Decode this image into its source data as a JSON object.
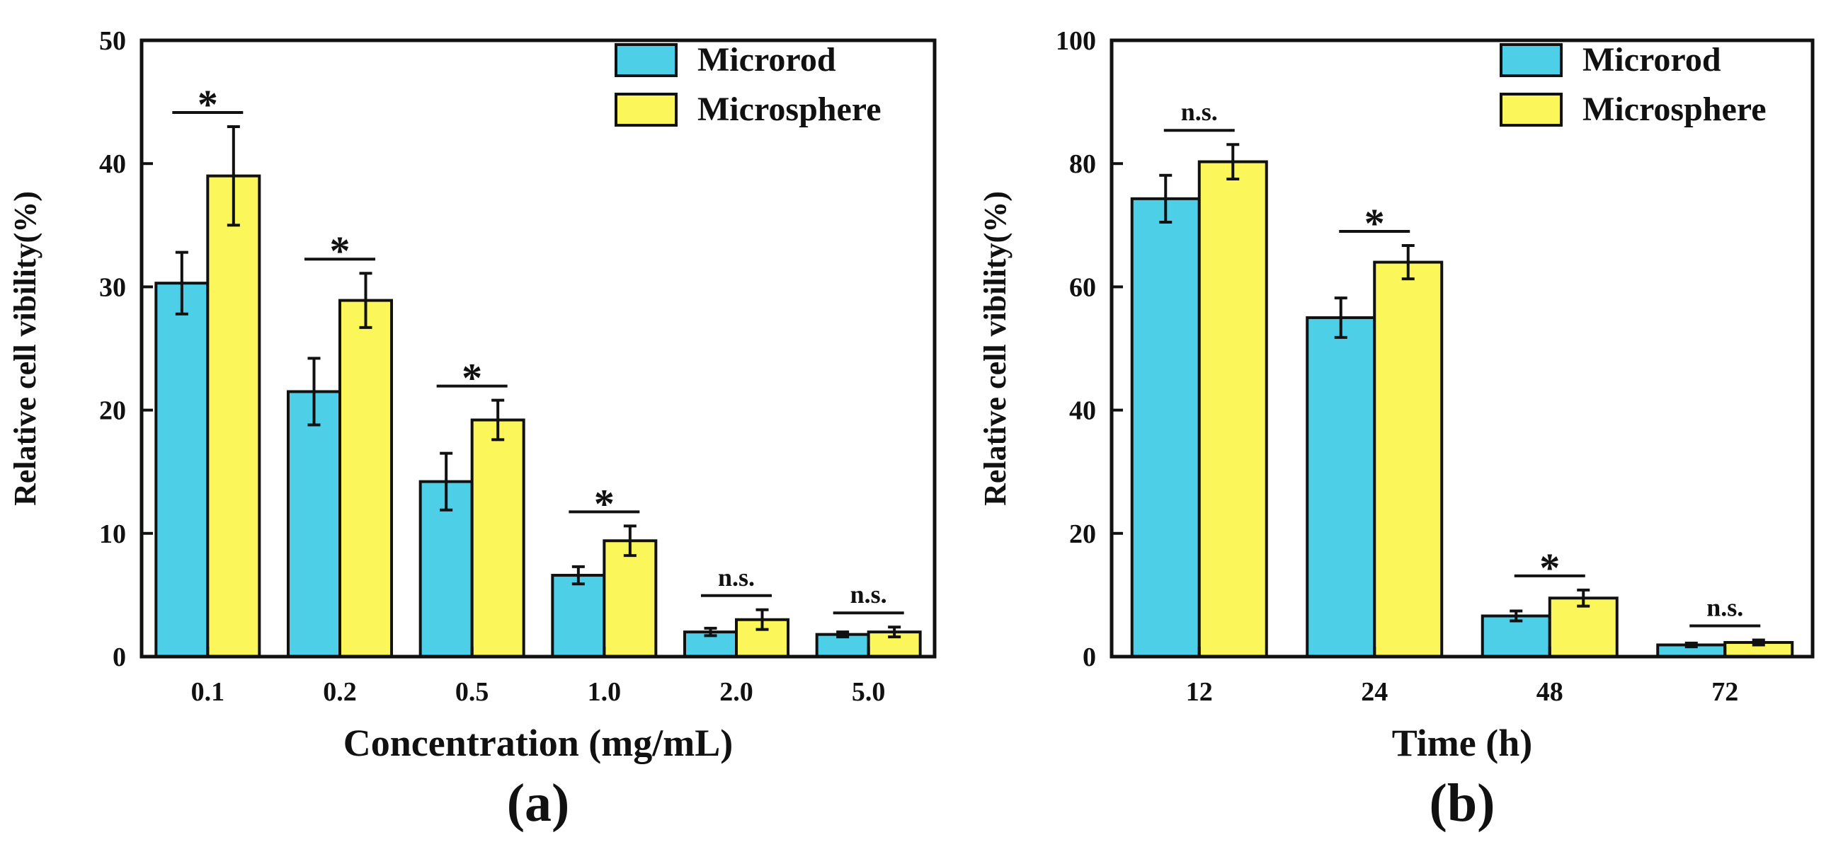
{
  "colors": {
    "microrod": "#4dcfe8",
    "microsphere": "#fbf65a",
    "stroke": "#111111"
  },
  "chart_data": [
    {
      "type": "bar",
      "panel_label": "(a)",
      "title": "",
      "xlabel": "Concentration (mg/mL)",
      "ylabel": "Relative cell vibility(%)",
      "ylim": [
        0,
        50
      ],
      "yticks": [
        0,
        10,
        20,
        30,
        40,
        50
      ],
      "categories": [
        "0.1",
        "0.2",
        "0.5",
        "1.0",
        "2.0",
        "5.0"
      ],
      "series": [
        {
          "name": "Microrod",
          "color": "#4dcfe8",
          "values": [
            30.3,
            21.5,
            14.2,
            6.6,
            2.0,
            1.8
          ],
          "errors": [
            2.5,
            2.7,
            2.3,
            0.7,
            0.3,
            0.2
          ]
        },
        {
          "name": "Microsphere",
          "color": "#fbf65a",
          "values": [
            39.0,
            28.9,
            19.2,
            9.4,
            3.0,
            2.0
          ],
          "errors": [
            4.0,
            2.2,
            1.6,
            1.2,
            0.8,
            0.4
          ]
        }
      ],
      "significance": [
        "*",
        "*",
        "*",
        "*",
        "n.s.",
        "n.s."
      ],
      "legend_position": "top-right",
      "grid": false
    },
    {
      "type": "bar",
      "panel_label": "(b)",
      "title": "",
      "xlabel": "Time (h)",
      "ylabel": "Relative cell vibility(%)",
      "ylim": [
        0,
        100
      ],
      "yticks": [
        0,
        20,
        40,
        60,
        80,
        100
      ],
      "categories": [
        "12",
        "24",
        "48",
        "72"
      ],
      "series": [
        {
          "name": "Microrod",
          "color": "#4dcfe8",
          "values": [
            74.3,
            55.0,
            6.6,
            1.9
          ],
          "errors": [
            3.8,
            3.2,
            0.8,
            0.3
          ]
        },
        {
          "name": "Microsphere",
          "color": "#fbf65a",
          "values": [
            80.3,
            64.0,
            9.5,
            2.3
          ],
          "errors": [
            2.8,
            2.7,
            1.3,
            0.4
          ]
        }
      ],
      "significance": [
        "n.s.",
        "*",
        "*",
        "n.s."
      ],
      "legend_position": "top-right",
      "grid": false
    }
  ]
}
